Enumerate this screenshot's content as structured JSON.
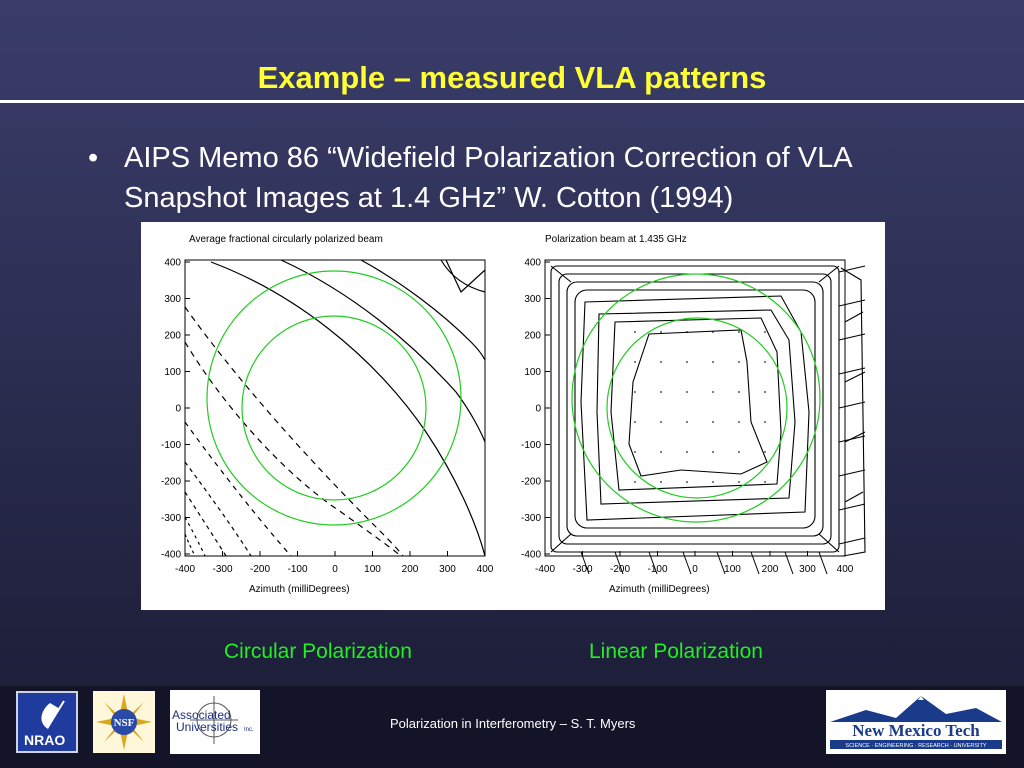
{
  "title": "Example – measured VLA patterns",
  "bullet": {
    "marker": "•",
    "text": "AIPS Memo 86 “Widefield Polarization Correction of VLA Snapshot Images at 1.4 GHz” W. Cotton (1994)"
  },
  "panels": {
    "left": {
      "title": "Average fractional circularly polarized beam",
      "xlabel": "Azimuth (milliDegrees)",
      "x_ticks": [
        "-400",
        "-300",
        "-200",
        "-100",
        "0",
        "100",
        "200",
        "300",
        "400"
      ],
      "y_ticks": [
        "400",
        "300",
        "200",
        "100",
        "0",
        "-100",
        "-200",
        "-300",
        "-400"
      ],
      "caption": "Circular Polarization"
    },
    "right": {
      "title": "Polarization beam at 1.435 GHz",
      "xlabel": "Azimuth (milliDegrees)",
      "x_ticks": [
        "-400",
        "-300",
        "-200",
        "-100",
        "0",
        "100",
        "200",
        "300",
        "400"
      ],
      "y_ticks": [
        "400",
        "300",
        "200",
        "100",
        "0",
        "-100",
        "-200",
        "-300",
        "-400"
      ],
      "caption": "Linear Polarization"
    }
  },
  "footer": {
    "text": "Polarization in Interferometry – S. T. Myers",
    "logos": {
      "nrao": "NRAO",
      "nsf": "NSF",
      "aui": {
        "line1": "Associated",
        "line2": "Universities",
        "suffix": "Inc."
      },
      "nmt": {
        "name": "New Mexico Tech",
        "tagline": "SCIENCE · ENGINEERING · RESEARCH · UNIVERSITY"
      }
    }
  },
  "colors": {
    "title": "#ffff33",
    "caption": "#22ee22",
    "contour": "#000000",
    "circle": "#22cc22"
  }
}
